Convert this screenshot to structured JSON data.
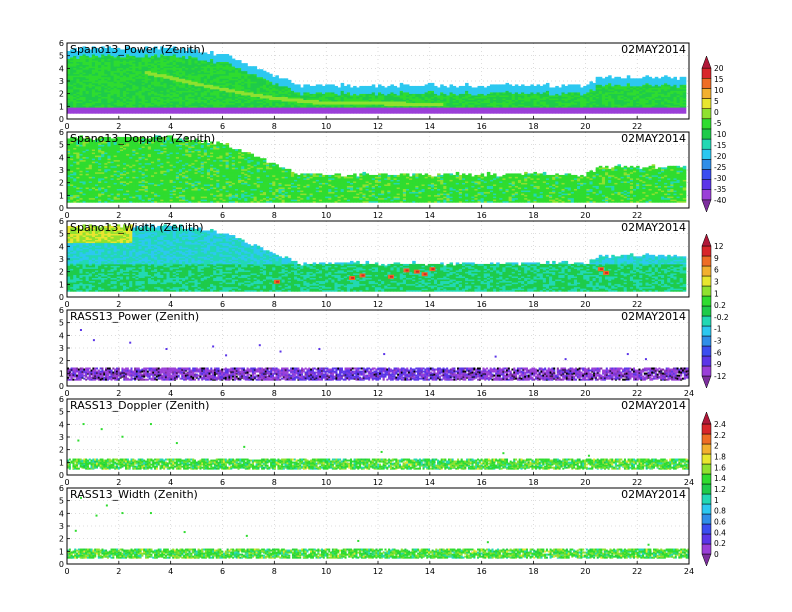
{
  "figure": {
    "date": "02MAY2014"
  },
  "colors": {
    "power": [
      "#7d2f9e",
      "#9a3fd8",
      "#5b35e8",
      "#3a4df0",
      "#2f8ee8",
      "#2cc8f0",
      "#22d8b4",
      "#1ecb4a",
      "#2fdc2f",
      "#8fe12f",
      "#e8e62f",
      "#f2b02f",
      "#ee6d25",
      "#d8262a",
      "#b01838"
    ],
    "width": [
      "#7d2f9e",
      "#9a3fd8",
      "#5b35e8",
      "#3a4df0",
      "#2f8ee8",
      "#2cc8f0",
      "#22d8b4",
      "#1ecb4a",
      "#2fdc2f",
      "#8fe12f",
      "#e8e62f",
      "#f2b02f",
      "#ee6d25",
      "#d8262a",
      "#b01838"
    ],
    "rass_doppler": [
      "#7d2f9e",
      "#9a3fd8",
      "#5b35e8",
      "#3a4df0",
      "#2f8ee8",
      "#2cc8f0",
      "#22d8b4",
      "#1ecb4a",
      "#2fdc2f",
      "#8fe12f",
      "#e8e62f",
      "#f2b02f",
      "#ee6d25",
      "#d8262a",
      "#b01838"
    ]
  },
  "colorbars": [
    {
      "id": "power",
      "labels": [
        "20",
        "15",
        "10",
        "5",
        "0",
        "-5",
        "-10",
        "-15",
        "-20",
        "-25",
        "-30",
        "-35",
        "-40"
      ]
    },
    {
      "id": "width",
      "labels": [
        "12",
        "9",
        "6",
        "3",
        "1",
        "0.2",
        "-0.2",
        "-1",
        "-3",
        "-6",
        "-9",
        "-12"
      ]
    },
    {
      "id": "rass_doppler",
      "labels": [
        "2.4",
        "2.2",
        "2",
        "1.8",
        "1.6",
        "1.4",
        "1.2",
        "1",
        "0.8",
        "0.6",
        "0.4",
        "0.2",
        "0"
      ]
    }
  ],
  "chart_data": [
    {
      "type": "heatmap",
      "title": "Spano13_Power (Zenith)",
      "date": "02MAY2014",
      "xlim": [
        0,
        24
      ],
      "ylim": [
        0,
        6
      ],
      "xticks": [
        "0",
        "2",
        "4",
        "6",
        "8",
        "10",
        "12",
        "14",
        "16",
        "18",
        "20",
        "22"
      ],
      "yticks": [
        "0",
        "1",
        "2",
        "3",
        "4",
        "5",
        "6"
      ],
      "grid": true,
      "colorbar": "power",
      "top_height_km": [
        [
          0,
          5.5
        ],
        [
          2.5,
          5.5
        ],
        [
          4,
          5.6
        ],
        [
          6,
          5
        ],
        [
          7,
          4.2
        ],
        [
          8,
          3.3
        ],
        [
          9,
          2.6
        ],
        [
          10,
          2.6
        ],
        [
          14,
          2.6
        ],
        [
          16,
          2.6
        ],
        [
          18,
          2.6
        ],
        [
          20,
          2.6
        ],
        [
          20.5,
          3.2
        ],
        [
          23.8,
          3.2
        ]
      ],
      "low_band": {
        "height_km": [
          0.5,
          0.9
        ],
        "color_index": 1
      },
      "enhanced_layer": [
        [
          3,
          3.6
        ],
        [
          4,
          3.2
        ],
        [
          5,
          2.7
        ],
        [
          6,
          2.3
        ],
        [
          7,
          1.9
        ],
        [
          8,
          1.6
        ],
        [
          9,
          1.4
        ],
        [
          10,
          1.2
        ],
        [
          12,
          1.2
        ],
        [
          14,
          1.1
        ]
      ]
    },
    {
      "type": "heatmap",
      "title": "Spano13_Doppler (Zenith)",
      "date": "02MAY2014",
      "xlim": [
        0,
        24
      ],
      "ylim": [
        0,
        6
      ],
      "xticks": [
        "0",
        "2",
        "4",
        "6",
        "8",
        "10",
        "12",
        "14",
        "16",
        "18",
        "20",
        "22"
      ],
      "yticks": [
        "0",
        "1",
        "2",
        "3",
        "4",
        "5",
        "6"
      ],
      "grid": true,
      "colorbar": "power",
      "top_height_km": [
        [
          0,
          5.5
        ],
        [
          2.5,
          5.5
        ],
        [
          4,
          5.6
        ],
        [
          6,
          5
        ],
        [
          7,
          4.2
        ],
        [
          8,
          3.3
        ],
        [
          9,
          2.6
        ],
        [
          10,
          2.6
        ],
        [
          14,
          2.6
        ],
        [
          16,
          2.6
        ],
        [
          18,
          2.6
        ],
        [
          20,
          2.6
        ],
        [
          20.5,
          3.2
        ],
        [
          23.8,
          3.2
        ]
      ]
    },
    {
      "type": "heatmap",
      "title": "Spano13_Width (Zenith)",
      "date": "02MAY2014",
      "xlim": [
        0,
        24
      ],
      "ylim": [
        0,
        6
      ],
      "xticks": [
        "0",
        "2",
        "4",
        "6",
        "8",
        "10",
        "12",
        "14",
        "16",
        "18",
        "20",
        "22"
      ],
      "yticks": [
        "0",
        "1",
        "2",
        "3",
        "4",
        "5",
        "6"
      ],
      "grid": true,
      "colorbar": "width",
      "top_height_km": [
        [
          0,
          5.5
        ],
        [
          2.5,
          5.5
        ],
        [
          4,
          5.6
        ],
        [
          6,
          5
        ],
        [
          7,
          4.2
        ],
        [
          8,
          3.3
        ],
        [
          9,
          2.6
        ],
        [
          10,
          2.6
        ],
        [
          14,
          2.6
        ],
        [
          16,
          2.6
        ],
        [
          18,
          2.6
        ],
        [
          20,
          2.6
        ],
        [
          20.5,
          3.2
        ],
        [
          23.8,
          3.2
        ]
      ],
      "hot_spots": [
        [
          8.1,
          1.2
        ],
        [
          11,
          1.5
        ],
        [
          11.4,
          1.7
        ],
        [
          13.1,
          2.1
        ],
        [
          13.5,
          2.0
        ],
        [
          13.8,
          1.8
        ],
        [
          14.1,
          2.2
        ],
        [
          12.5,
          1.6
        ],
        [
          20.6,
          2.2
        ],
        [
          20.8,
          1.9
        ]
      ]
    },
    {
      "type": "scatter",
      "title": "RASS13_Power (Zenith)",
      "date": "02MAY2014",
      "xlim": [
        0,
        24
      ],
      "ylim": [
        0,
        6
      ],
      "xticks": [
        "0",
        "2",
        "4",
        "6",
        "8",
        "10",
        "12",
        "14",
        "16",
        "18",
        "20",
        "22",
        "24"
      ],
      "yticks": [
        "0",
        "1",
        "2",
        "3",
        "4",
        "5",
        "6"
      ],
      "grid": true,
      "colorbar": "power",
      "band_km": [
        0.5,
        1.4
      ],
      "band_color_index": 1,
      "sparse_points": [
        [
          1,
          3.7
        ],
        [
          2.4,
          3.5
        ],
        [
          3.8,
          3.0
        ],
        [
          5.6,
          3.2
        ],
        [
          7.4,
          3.3
        ],
        [
          8.2,
          2.8
        ],
        [
          9.7,
          3.0
        ],
        [
          12.2,
          2.6
        ],
        [
          16.5,
          2.4
        ],
        [
          19.2,
          2.2
        ],
        [
          21.6,
          2.6
        ],
        [
          22.3,
          2.2
        ],
        [
          0.5,
          4.5
        ],
        [
          6.1,
          2.5
        ]
      ]
    },
    {
      "type": "scatter",
      "title": "RASS13_Doppler (Zenith)",
      "date": "02MAY2014",
      "xlim": [
        0,
        24
      ],
      "ylim": [
        0,
        6
      ],
      "xticks": [
        "0",
        "2",
        "4",
        "6",
        "8",
        "10",
        "12",
        "14",
        "16",
        "18",
        "20",
        "22",
        "24"
      ],
      "yticks": [
        "0",
        "1",
        "2",
        "3",
        "4",
        "5",
        "6"
      ],
      "grid": true,
      "colorbar": "rass_doppler",
      "band_km": [
        0.5,
        1.3
      ],
      "band_color_index": 8,
      "sparse_points": [
        [
          0.6,
          4.1
        ],
        [
          1.3,
          3.7
        ],
        [
          2.1,
          3.1
        ],
        [
          3.2,
          4.1
        ],
        [
          0.4,
          2.8
        ],
        [
          4.2,
          2.6
        ],
        [
          6.8,
          2.3
        ],
        [
          12.1,
          1.9
        ],
        [
          16.8,
          1.8
        ],
        [
          20.1,
          1.6
        ]
      ]
    },
    {
      "type": "scatter",
      "title": "RASS13_Width (Zenith)",
      "date": "02MAY2014",
      "xlim": [
        0,
        24
      ],
      "ylim": [
        0,
        6
      ],
      "xticks": [
        "0",
        "2",
        "4",
        "6",
        "8",
        "10",
        "12",
        "14",
        "16",
        "18",
        "20",
        "22",
        "24"
      ],
      "yticks": [
        "0",
        "1",
        "2",
        "3",
        "4",
        "5",
        "6"
      ],
      "grid": true,
      "colorbar": "rass_doppler",
      "band_km": [
        0.5,
        1.2
      ],
      "band_color_index": 8,
      "sparse_points": [
        [
          0.5,
          5.3
        ],
        [
          1.1,
          3.9
        ],
        [
          1.5,
          4.7
        ],
        [
          2.1,
          4.1
        ],
        [
          3.2,
          4.1
        ],
        [
          0.3,
          2.7
        ],
        [
          4.5,
          2.6
        ],
        [
          6.9,
          2.3
        ],
        [
          11.2,
          1.9
        ],
        [
          16.2,
          1.8
        ],
        [
          22.4,
          1.6
        ]
      ]
    }
  ]
}
